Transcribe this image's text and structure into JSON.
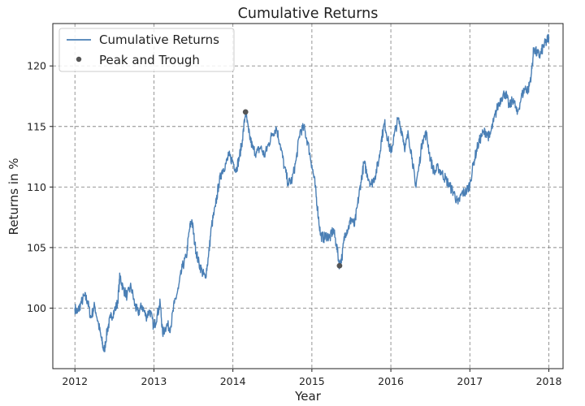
{
  "chart_data": {
    "type": "line",
    "title": "Cumulative Returns",
    "xlabel": "Year",
    "ylabel": "Returns in %",
    "xlim": [
      2011.72,
      2018.18
    ],
    "ylim": [
      95.0,
      123.5
    ],
    "x_ticks": [
      2012,
      2013,
      2014,
      2015,
      2016,
      2017,
      2018
    ],
    "x_tick_labels": [
      "2012",
      "2013",
      "2014",
      "2015",
      "2016",
      "2017",
      "2018"
    ],
    "y_ticks": [
      100,
      105,
      110,
      115,
      120
    ],
    "y_tick_labels": [
      "100",
      "105",
      "110",
      "115",
      "120"
    ],
    "grid": true,
    "legend_position": "top-left",
    "series": [
      {
        "name": "Cumulative Returns",
        "color": "#4a7fb5",
        "points": [
          [
            2012.0,
            100.0
          ],
          [
            2012.03,
            99.6
          ],
          [
            2012.07,
            100.3
          ],
          [
            2012.12,
            101.0
          ],
          [
            2012.16,
            100.6
          ],
          [
            2012.2,
            99.2
          ],
          [
            2012.25,
            100.2
          ],
          [
            2012.3,
            98.6
          ],
          [
            2012.34,
            97.3
          ],
          [
            2012.37,
            96.4
          ],
          [
            2012.41,
            98.2
          ],
          [
            2012.45,
            99.2
          ],
          [
            2012.5,
            99.8
          ],
          [
            2012.54,
            100.4
          ],
          [
            2012.57,
            102.7
          ],
          [
            2012.61,
            101.6
          ],
          [
            2012.66,
            101.0
          ],
          [
            2012.71,
            101.8
          ],
          [
            2012.76,
            100.2
          ],
          [
            2012.8,
            99.6
          ],
          [
            2012.85,
            100.2
          ],
          [
            2012.9,
            99.3
          ],
          [
            2012.95,
            99.8
          ],
          [
            2013.0,
            98.4
          ],
          [
            2013.04,
            99.4
          ],
          [
            2013.08,
            100.4
          ],
          [
            2013.11,
            97.9
          ],
          [
            2013.16,
            98.6
          ],
          [
            2013.21,
            98.4
          ],
          [
            2013.26,
            100.4
          ],
          [
            2013.31,
            101.6
          ],
          [
            2013.36,
            103.4
          ],
          [
            2013.41,
            104.2
          ],
          [
            2013.45,
            106.5
          ],
          [
            2013.48,
            107.3
          ],
          [
            2013.52,
            105.2
          ],
          [
            2013.56,
            103.9
          ],
          [
            2013.61,
            103.0
          ],
          [
            2013.65,
            102.5
          ],
          [
            2013.69,
            104.2
          ],
          [
            2013.73,
            106.8
          ],
          [
            2013.78,
            108.4
          ],
          [
            2013.82,
            110.2
          ],
          [
            2013.86,
            111.3
          ],
          [
            2013.91,
            111.9
          ],
          [
            2013.95,
            112.6
          ],
          [
            2014.0,
            112.1
          ],
          [
            2014.04,
            111.4
          ],
          [
            2014.08,
            112.4
          ],
          [
            2014.12,
            113.9
          ],
          [
            2014.16,
            116.2
          ],
          [
            2014.2,
            114.5
          ],
          [
            2014.25,
            113.2
          ],
          [
            2014.3,
            112.8
          ],
          [
            2014.35,
            113.3
          ],
          [
            2014.4,
            112.6
          ],
          [
            2014.45,
            113.5
          ],
          [
            2014.5,
            114.4
          ],
          [
            2014.55,
            114.9
          ],
          [
            2014.6,
            113.5
          ],
          [
            2014.65,
            111.7
          ],
          [
            2014.7,
            110.3
          ],
          [
            2014.75,
            110.6
          ],
          [
            2014.8,
            112.2
          ],
          [
            2014.85,
            114.6
          ],
          [
            2014.9,
            114.9
          ],
          [
            2014.95,
            113.6
          ],
          [
            2015.0,
            111.8
          ],
          [
            2015.04,
            110.2
          ],
          [
            2015.07,
            108.3
          ],
          [
            2015.11,
            106.0
          ],
          [
            2015.15,
            105.8
          ],
          [
            2015.19,
            106.0
          ],
          [
            2015.23,
            105.8
          ],
          [
            2015.27,
            106.5
          ],
          [
            2015.31,
            105.3
          ],
          [
            2015.35,
            103.5
          ],
          [
            2015.38,
            104.2
          ],
          [
            2015.42,
            106.2
          ],
          [
            2015.46,
            106.6
          ],
          [
            2015.5,
            107.4
          ],
          [
            2015.54,
            106.8
          ],
          [
            2015.58,
            108.6
          ],
          [
            2015.62,
            110.4
          ],
          [
            2015.66,
            112.0
          ],
          [
            2015.7,
            111.1
          ],
          [
            2015.75,
            110.2
          ],
          [
            2015.8,
            110.9
          ],
          [
            2015.85,
            112.3
          ],
          [
            2015.88,
            113.9
          ],
          [
            2015.92,
            115.3
          ],
          [
            2015.96,
            114.0
          ],
          [
            2016.0,
            112.8
          ],
          [
            2016.04,
            114.2
          ],
          [
            2016.09,
            115.6
          ],
          [
            2016.14,
            114.6
          ],
          [
            2016.18,
            113.2
          ],
          [
            2016.22,
            114.4
          ],
          [
            2016.27,
            112.4
          ],
          [
            2016.31,
            110.1
          ],
          [
            2016.35,
            111.4
          ],
          [
            2016.4,
            113.9
          ],
          [
            2016.45,
            114.4
          ],
          [
            2016.5,
            112.3
          ],
          [
            2016.55,
            111.2
          ],
          [
            2016.6,
            111.6
          ],
          [
            2016.65,
            111.1
          ],
          [
            2016.7,
            110.6
          ],
          [
            2016.75,
            110.0
          ],
          [
            2016.8,
            109.5
          ],
          [
            2016.85,
            108.6
          ],
          [
            2016.9,
            109.5
          ],
          [
            2016.95,
            109.6
          ],
          [
            2017.0,
            110.2
          ],
          [
            2017.05,
            112.1
          ],
          [
            2017.1,
            113.4
          ],
          [
            2017.15,
            114.3
          ],
          [
            2017.2,
            114.6
          ],
          [
            2017.25,
            114.1
          ],
          [
            2017.3,
            115.4
          ],
          [
            2017.35,
            116.6
          ],
          [
            2017.4,
            117.4
          ],
          [
            2017.45,
            117.8
          ],
          [
            2017.5,
            116.6
          ],
          [
            2017.55,
            117.3
          ],
          [
            2017.6,
            116.0
          ],
          [
            2017.65,
            117.4
          ],
          [
            2017.7,
            118.2
          ],
          [
            2017.74,
            118.0
          ],
          [
            2017.78,
            119.4
          ],
          [
            2017.81,
            121.5
          ],
          [
            2017.85,
            121.0
          ],
          [
            2017.89,
            120.9
          ],
          [
            2017.93,
            121.6
          ],
          [
            2017.97,
            122.0
          ],
          [
            2018.0,
            122.4
          ]
        ]
      },
      {
        "name": "Peak and Trough",
        "color": "#555555",
        "points": [
          [
            2014.16,
            116.2
          ],
          [
            2015.35,
            103.5
          ]
        ]
      }
    ]
  }
}
